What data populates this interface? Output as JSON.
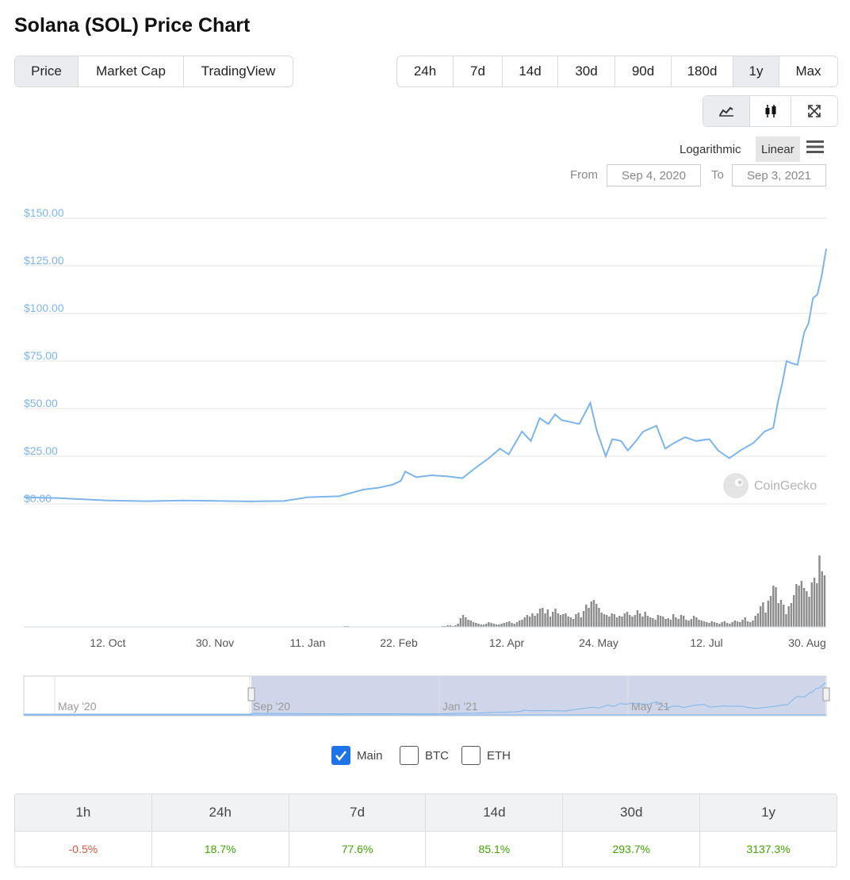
{
  "title": "Solana (SOL) Price Chart",
  "view_tabs": [
    "Price",
    "Market Cap",
    "TradingView"
  ],
  "range_tabs": [
    "24h",
    "7d",
    "14d",
    "30d",
    "90d",
    "180d",
    "1y",
    "Max"
  ],
  "chart_type_icons": [
    "line-chart-icon",
    "candlestick-icon",
    "fullscreen-icon"
  ],
  "scale": {
    "log": "Logarithmic",
    "linear": "Linear"
  },
  "date_range": {
    "from_label": "From",
    "from": "Sep 4, 2020",
    "to_label": "To",
    "to": "Sep 3, 2021"
  },
  "watermark": "CoinGecko",
  "colors": {
    "price_line": "#7cb5ec",
    "volume_bar": "#8c8c8c",
    "navigator_fill": "#cfd6ea",
    "positive": "#3fa600",
    "negative": "#e15241"
  },
  "chart_data": {
    "type": "line",
    "ylim": [
      0,
      150
    ],
    "y_ticks": [
      "$150.00",
      "$125.00",
      "$100.00",
      "$75.00",
      "$50.00",
      "$25.00",
      "$0.00"
    ],
    "x_ticks": [
      "12. Oct",
      "30. Nov",
      "11. Jan",
      "22. Feb",
      "12. Apr",
      "24. May",
      "12. Jul",
      "30. Aug"
    ],
    "x_range": [
      "2020-09-04",
      "2021-09-03"
    ],
    "series": [
      {
        "points": [
          [
            "2020-09-04",
            3.5
          ],
          [
            "2020-09-20",
            3.0
          ],
          [
            "2020-10-12",
            1.8
          ],
          [
            "2020-10-30",
            1.4
          ],
          [
            "2020-11-15",
            1.8
          ],
          [
            "2020-11-30",
            1.6
          ],
          [
            "2020-12-15",
            1.3
          ],
          [
            "2020-12-31",
            1.5
          ],
          [
            "2021-01-11",
            3.5
          ],
          [
            "2021-01-25",
            4.0
          ],
          [
            "2021-02-05",
            7.5
          ],
          [
            "2021-02-12",
            8.5
          ],
          [
            "2021-02-18",
            10.0
          ],
          [
            "2021-02-22",
            12.0
          ],
          [
            "2021-02-24",
            17.0
          ],
          [
            "2021-03-01",
            14.0
          ],
          [
            "2021-03-08",
            15.0
          ],
          [
            "2021-03-15",
            14.5
          ],
          [
            "2021-03-22",
            13.5
          ],
          [
            "2021-03-28",
            19.0
          ],
          [
            "2021-04-03",
            24.0
          ],
          [
            "2021-04-08",
            29.0
          ],
          [
            "2021-04-12",
            26.0
          ],
          [
            "2021-04-18",
            38.0
          ],
          [
            "2021-04-22",
            33.0
          ],
          [
            "2021-04-26",
            45.0
          ],
          [
            "2021-04-30",
            42.0
          ],
          [
            "2021-05-03",
            47.0
          ],
          [
            "2021-05-06",
            44.0
          ],
          [
            "2021-05-10",
            43.0
          ],
          [
            "2021-05-14",
            42.0
          ],
          [
            "2021-05-19",
            53.0
          ],
          [
            "2021-05-22",
            38.0
          ],
          [
            "2021-05-26",
            25.0
          ],
          [
            "2021-05-29",
            34.0
          ],
          [
            "2021-06-02",
            33.0
          ],
          [
            "2021-06-05",
            28.0
          ],
          [
            "2021-06-08",
            32.0
          ],
          [
            "2021-06-12",
            38.0
          ],
          [
            "2021-06-18",
            41.0
          ],
          [
            "2021-06-22",
            29.0
          ],
          [
            "2021-06-26",
            32.0
          ],
          [
            "2021-07-01",
            35.0
          ],
          [
            "2021-07-06",
            33.0
          ],
          [
            "2021-07-12",
            34.0
          ],
          [
            "2021-07-16",
            28.0
          ],
          [
            "2021-07-21",
            24.0
          ],
          [
            "2021-07-26",
            28.0
          ],
          [
            "2021-08-01",
            32.0
          ],
          [
            "2021-08-06",
            38.0
          ],
          [
            "2021-08-10",
            40.0
          ],
          [
            "2021-08-12",
            53.0
          ],
          [
            "2021-08-14",
            63.0
          ],
          [
            "2021-08-16",
            75.0
          ],
          [
            "2021-08-18",
            74.0
          ],
          [
            "2021-08-21",
            73.0
          ],
          [
            "2021-08-24",
            90.0
          ],
          [
            "2021-08-26",
            95.0
          ],
          [
            "2021-08-28",
            108.0
          ],
          [
            "2021-08-30",
            110.0
          ],
          [
            "2021-09-01",
            120.0
          ],
          [
            "2021-09-03",
            134.0
          ]
        ]
      }
    ],
    "volume": [
      0,
      0,
      0,
      0,
      0,
      0,
      0,
      0,
      0,
      0,
      0,
      0,
      0,
      0,
      0,
      0,
      0,
      0,
      0,
      0,
      0,
      0,
      0,
      0,
      0,
      0,
      0,
      0,
      0,
      0,
      0,
      0,
      0,
      0,
      0,
      0,
      0,
      0,
      0,
      0,
      0,
      0,
      0,
      0,
      0,
      0,
      0,
      0,
      0,
      0,
      0,
      0,
      0,
      0,
      0,
      0,
      0,
      0,
      0,
      0,
      0,
      0,
      0,
      0,
      0,
      0,
      0,
      0,
      0,
      0,
      0,
      0,
      0,
      0,
      0,
      0,
      0,
      0,
      0,
      0,
      0,
      0,
      0,
      0,
      0,
      0,
      0,
      0,
      0,
      0,
      0,
      0,
      0,
      0,
      0,
      0,
      0,
      0,
      0,
      0,
      0,
      0,
      0,
      0,
      0,
      0,
      0,
      0,
      0,
      0,
      0,
      0,
      0,
      0,
      0,
      0,
      0,
      0,
      0,
      0,
      0,
      0,
      0,
      0,
      0,
      1,
      1,
      0,
      0,
      0,
      0,
      0,
      0,
      0,
      0,
      0,
      0,
      0,
      0,
      0,
      0,
      0,
      0,
      0,
      0,
      0,
      0,
      0,
      0,
      0,
      0,
      0,
      0,
      0,
      0,
      0,
      0,
      0,
      0,
      0,
      0,
      0,
      0,
      1,
      1,
      2,
      2,
      1,
      2,
      4,
      11,
      15,
      12,
      9,
      8,
      6,
      5,
      4,
      3,
      3,
      4,
      6,
      5,
      4,
      3,
      3,
      4,
      5,
      6,
      7,
      5,
      4,
      6,
      8,
      9,
      12,
      15,
      13,
      17,
      14,
      17,
      23,
      24,
      17,
      22,
      13,
      19,
      23,
      17,
      15,
      16,
      17,
      13,
      12,
      10,
      16,
      18,
      12,
      20,
      28,
      24,
      32,
      34,
      29,
      24,
      18,
      16,
      15,
      13,
      17,
      16,
      12,
      14,
      13,
      17,
      19,
      15,
      13,
      15,
      21,
      17,
      13,
      19,
      14,
      12,
      11,
      9,
      15,
      14,
      13,
      10,
      11,
      9,
      16,
      12,
      10,
      15,
      14,
      9,
      8,
      10,
      14,
      12,
      9,
      8,
      7,
      6,
      5,
      7,
      6,
      5,
      4,
      6,
      7,
      5,
      4,
      6,
      8,
      7,
      6,
      9,
      12,
      7,
      6,
      8,
      14,
      17,
      26,
      31,
      18,
      33,
      39,
      52,
      50,
      30,
      34,
      28,
      16,
      26,
      30,
      40,
      54,
      52,
      58,
      49,
      45,
      38,
      56,
      62,
      55,
      90,
      70,
      65
    ],
    "navigator": {
      "ticks": [
        "May '20",
        "Sep '20",
        "Jan '21",
        "May '21"
      ]
    }
  },
  "legend": [
    {
      "label": "Main",
      "checked": true
    },
    {
      "label": "BTC",
      "checked": false
    },
    {
      "label": "ETH",
      "checked": false
    }
  ],
  "stats": {
    "headers": [
      "1h",
      "24h",
      "7d",
      "14d",
      "30d",
      "1y"
    ],
    "values": [
      "-0.5%",
      "18.7%",
      "77.6%",
      "85.1%",
      "293.7%",
      "3137.3%"
    ],
    "signs": [
      -1,
      1,
      1,
      1,
      1,
      1
    ]
  }
}
